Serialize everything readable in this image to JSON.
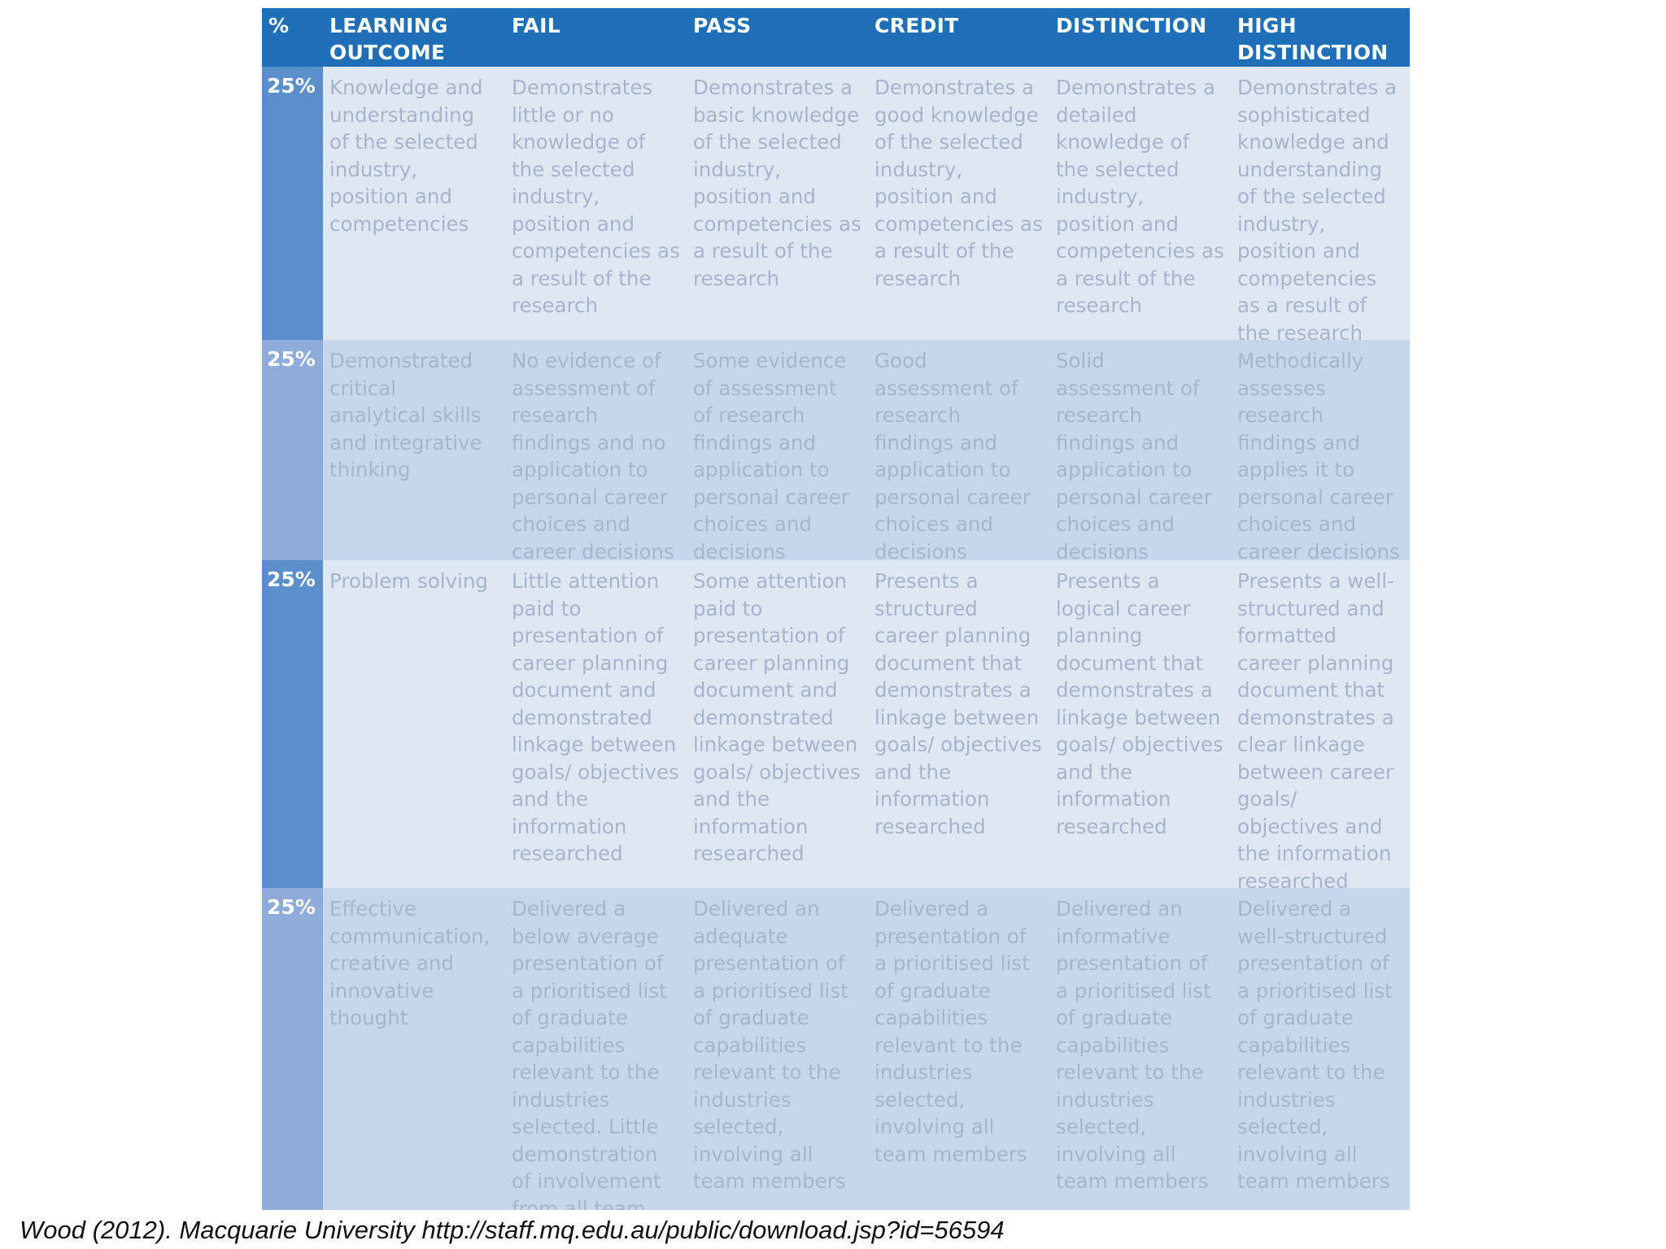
{
  "table": {
    "headers": [
      "%",
      "LEARNING OUTCOME",
      "FAIL",
      "PASS",
      "CREDIT",
      "DISTINCTION",
      "HIGH DISTINCTION"
    ],
    "rows": [
      {
        "percent": "25%",
        "outcome": "Knowledge and understanding of the selected industry, position and competencies",
        "fail": "Demonstrates little or no knowledge of the selected industry, position and competencies as a result of the research",
        "pass": "Demonstrates a basic knowledge of the selected industry, position and competencies as a result of the research",
        "credit": "Demonstrates a good knowledge of the selected industry, position and competencies as a result of the research",
        "distinction": "Demonstrates a detailed knowledge of the selected industry, position and competencies as a result of the research",
        "high_distinction": "Demonstrates a sophisticated knowledge and understanding of the selected industry, position and competencies as a result of the research"
      },
      {
        "percent": "25%",
        "outcome": "Demonstrated critical analytical skills and integrative thinking",
        "fail": "No evidence of assessment of research findings and no application to personal career choices and career decisions",
        "pass": "Some evidence of assessment of research findings and application to personal career choices and decisions",
        "credit": "Good assessment of research findings and application to personal career choices and decisions",
        "distinction": "Solid assessment of research findings and application to personal career choices and decisions",
        "high_distinction": "Methodically assesses research findings and applies it to personal career choices and career decisions"
      },
      {
        "percent": "25%",
        "outcome": "Problem solving",
        "fail": "Little attention paid to presentation of career planning document and demonstrated linkage between goals/ objectives and the information researched",
        "pass": "Some attention paid to presentation of career planning document and demonstrated linkage between goals/ objectives and the information researched",
        "credit": "Presents a structured career planning document that demonstrates a linkage between goals/ objectives and the information researched",
        "distinction": "Presents a logical career planning document that demonstrates a linkage between goals/ objectives and the information researched",
        "high_distinction": "Presents a well-structured and formatted career planning document that demonstrates a clear linkage between career goals/ objectives and the information researched"
      },
      {
        "percent": "25%",
        "outcome": "Effective communication, creative and innovative thought",
        "fail": "Delivered a below average presentation of a prioritised list of graduate capabilities relevant to the industries selected. Little demonstration of involvement from all team members",
        "pass": "Delivered an adequate presentation of a prioritised list of graduate capabilities relevant to the industries selected, involving all team members",
        "credit": "Delivered a presentation of a prioritised list of graduate capabilities relevant to the industries selected, involving all team members",
        "distinction": "Delivered an informative presentation of a prioritised list of graduate capabilities relevant to the industries selected, involving all team members",
        "high_distinction": "Delivered a well-structured presentation of a prioritised list of graduate capabilities relevant to the industries selected, involving all team members"
      }
    ]
  },
  "caption": "Wood (2012). Macquarie University http://staff.mq.edu.au/public/download.jsp?id=56594",
  "colors": {
    "header_bg": "#1e6fb8",
    "row_light": "#dfe7f3",
    "row_dark": "#c8d6ec",
    "percent_dark": "#5b8fcc",
    "percent_light": "#8eabd9",
    "body_text": "#a7b4c9"
  }
}
